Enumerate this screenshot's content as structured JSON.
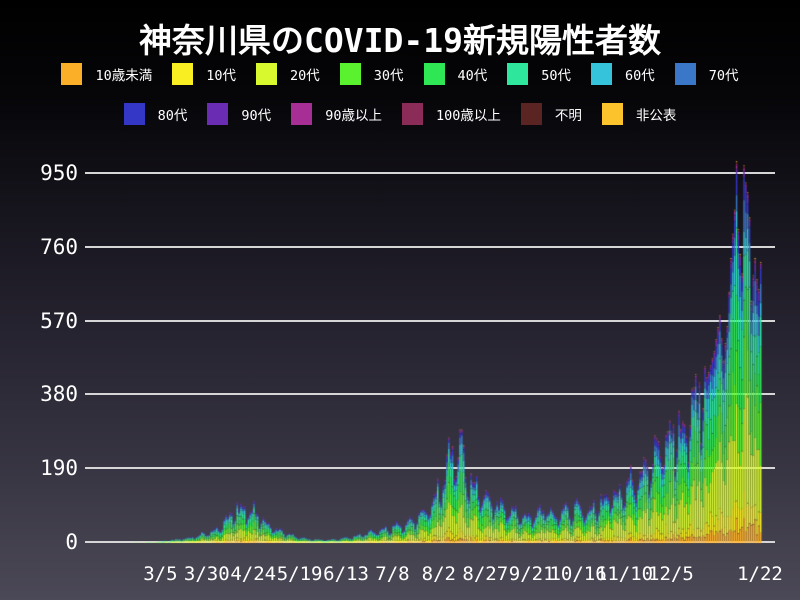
{
  "chart_data": {
    "type": "bar",
    "stacked": true,
    "title": "神奈川県のCOVID-19新規陽性者数",
    "legend_position": "top",
    "grid": true,
    "grid_color": "#d6d6d6",
    "background": "black-to-slate vertical gradient",
    "ylim": [
      0,
      1000
    ],
    "y_ticks": [
      0,
      190,
      380,
      570,
      760,
      950
    ],
    "x_ticks": [
      {
        "label": "3/5",
        "day": 18
      },
      {
        "label": "3/30",
        "day": 43
      },
      {
        "label": "4/24",
        "day": 68
      },
      {
        "label": "5/19",
        "day": 93
      },
      {
        "label": "6/13",
        "day": 118
      },
      {
        "label": "7/8",
        "day": 143
      },
      {
        "label": "8/2",
        "day": 168
      },
      {
        "label": "8/27",
        "day": 193
      },
      {
        "label": "9/21",
        "day": 218
      },
      {
        "label": "10/16",
        "day": 243
      },
      {
        "label": "11/10",
        "day": 268
      },
      {
        "label": "12/5",
        "day": 293
      },
      {
        "label": "1/22",
        "day": 341
      }
    ],
    "days": 342,
    "series": [
      {
        "name": "10歳未満",
        "color": "#fbaf28",
        "fraction": 0.05
      },
      {
        "name": "10代",
        "color": "#f9ee21",
        "fraction": 0.075
      },
      {
        "name": "20代",
        "color": "#d7f92e",
        "fraction": 0.235
      },
      {
        "name": "30代",
        "color": "#5af12e",
        "fraction": 0.16
      },
      {
        "name": "40代",
        "color": "#2fe654",
        "fraction": 0.15
      },
      {
        "name": "50代",
        "color": "#2ee79d",
        "fraction": 0.125
      },
      {
        "name": "60代",
        "color": "#34c3da",
        "fraction": 0.075
      },
      {
        "name": "70代",
        "color": "#3b77c9",
        "fraction": 0.055
      },
      {
        "name": "80代",
        "color": "#3437c6",
        "fraction": 0.04
      },
      {
        "name": "90代",
        "color": "#6a2cb3",
        "fraction": 0.02
      },
      {
        "name": "90歳以上",
        "color": "#a72e95",
        "fraction": 0.008
      },
      {
        "name": "100歳以上",
        "color": "#8b2b57",
        "fraction": 0.002
      },
      {
        "name": "不明",
        "color": "#5a2423",
        "fraction": 0.003
      },
      {
        "name": "非公表",
        "color": "#fdc32c",
        "fraction": 0.002
      }
    ],
    "legend_rows": [
      8,
      6
    ],
    "daily_total_anchors": [
      [
        0,
        1
      ],
      [
        6,
        2
      ],
      [
        12,
        3
      ],
      [
        18,
        5
      ],
      [
        24,
        8
      ],
      [
        30,
        12
      ],
      [
        36,
        18
      ],
      [
        43,
        26
      ],
      [
        48,
        38
      ],
      [
        52,
        55
      ],
      [
        56,
        75
      ],
      [
        59,
        92
      ],
      [
        61,
        80
      ],
      [
        63,
        96
      ],
      [
        65,
        78
      ],
      [
        68,
        88
      ],
      [
        71,
        64
      ],
      [
        75,
        52
      ],
      [
        80,
        38
      ],
      [
        85,
        28
      ],
      [
        90,
        18
      ],
      [
        93,
        15
      ],
      [
        97,
        11
      ],
      [
        102,
        9
      ],
      [
        107,
        8
      ],
      [
        112,
        10
      ],
      [
        118,
        14
      ],
      [
        124,
        19
      ],
      [
        130,
        26
      ],
      [
        136,
        32
      ],
      [
        143,
        40
      ],
      [
        148,
        48
      ],
      [
        153,
        58
      ],
      [
        158,
        75
      ],
      [
        163,
        100
      ],
      [
        166,
        125
      ],
      [
        169,
        150
      ],
      [
        172,
        190
      ],
      [
        175,
        252
      ],
      [
        177,
        220
      ],
      [
        180,
        235
      ],
      [
        183,
        180
      ],
      [
        186,
        155
      ],
      [
        189,
        135
      ],
      [
        193,
        115
      ],
      [
        197,
        100
      ],
      [
        201,
        92
      ],
      [
        205,
        85
      ],
      [
        210,
        78
      ],
      [
        214,
        68
      ],
      [
        218,
        72
      ],
      [
        222,
        80
      ],
      [
        226,
        88
      ],
      [
        230,
        72
      ],
      [
        234,
        80
      ],
      [
        238,
        86
      ],
      [
        243,
        92
      ],
      [
        247,
        85
      ],
      [
        251,
        98
      ],
      [
        255,
        108
      ],
      [
        259,
        118
      ],
      [
        264,
        132
      ],
      [
        268,
        142
      ],
      [
        272,
        158
      ],
      [
        276,
        178
      ],
      [
        280,
        205
      ],
      [
        284,
        228
      ],
      [
        288,
        252
      ],
      [
        293,
        278
      ],
      [
        297,
        300
      ],
      [
        301,
        325
      ],
      [
        305,
        352
      ],
      [
        309,
        390
      ],
      [
        313,
        440
      ],
      [
        316,
        495
      ],
      [
        319,
        588
      ],
      [
        321,
        470
      ],
      [
        323,
        560
      ],
      [
        325,
        735
      ],
      [
        327,
        860
      ],
      [
        328,
        985
      ],
      [
        329,
        810
      ],
      [
        330,
        745
      ],
      [
        331,
        695
      ],
      [
        332,
        975
      ],
      [
        333,
        930
      ],
      [
        334,
        905
      ],
      [
        335,
        840
      ],
      [
        336,
        625
      ],
      [
        337,
        690
      ],
      [
        338,
        735
      ],
      [
        339,
        680
      ],
      [
        340,
        655
      ],
      [
        341,
        725
      ]
    ],
    "weekly_factors": [
      0.95,
      0.7,
      0.8,
      1.05,
      1.12,
      1.15,
      1.1
    ],
    "weekly_factor_cutoff_day": 312
  }
}
